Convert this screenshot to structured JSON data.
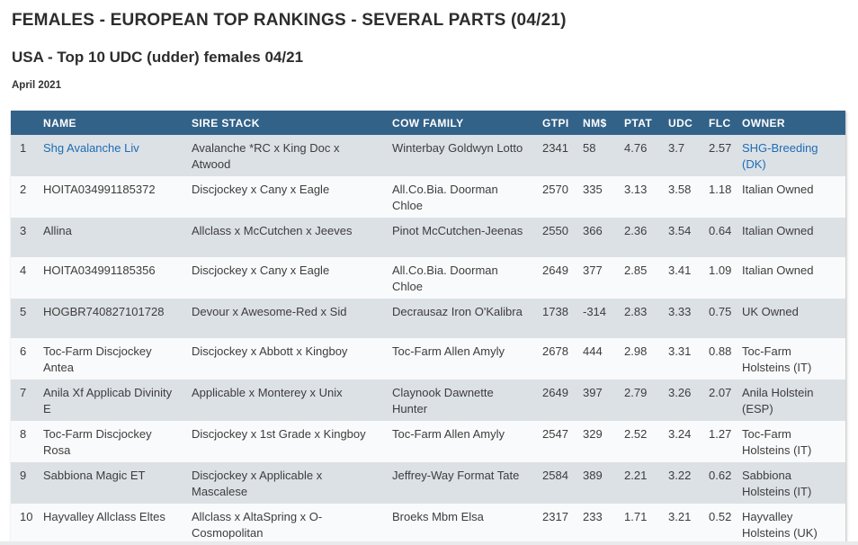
{
  "page": {
    "title": "FEMALES - EUROPEAN TOP RANKINGS - SEVERAL PARTS (04/21)",
    "subtitle": "USA - Top 10 UDC (udder) females 04/21",
    "date_label": "April 2021"
  },
  "colors": {
    "table_header_bg": "#336289",
    "row_alt_bg": "#dce1e6",
    "row_bg": "#f9fafb",
    "link": "#1e6cb3",
    "body_text": "#3d3d3d"
  },
  "table": {
    "columns": [
      "",
      "NAME",
      "SIRE STACK",
      "COW FAMILY",
      "GTPI",
      "NM$",
      "PTAT",
      "UDC",
      "FLC",
      "OWNER"
    ],
    "rows": [
      {
        "rank": "1",
        "name": "Shg Avalanche Liv",
        "name_is_link": true,
        "sire_stack": "Avalanche *RC x King Doc x Atwood",
        "cow_family": "Winterbay Goldwyn Lotto",
        "gtpi": "2341",
        "nm": "58",
        "ptat": "4.76",
        "udc": "3.7",
        "flc": "2.57",
        "owner": "SHG-Breeding (DK)",
        "owner_is_link": true
      },
      {
        "rank": "2",
        "name": "HOITA034991185372",
        "sire_stack": "Discjockey x Cany x Eagle",
        "cow_family": "All.Co.Bia. Doorman Chloe",
        "gtpi": "2570",
        "nm": "335",
        "ptat": "3.13",
        "udc": "3.58",
        "flc": "1.18",
        "owner": "Italian Owned"
      },
      {
        "rank": "3",
        "name": "Allina",
        "sire_stack": "Allclass x McCutchen x Jeeves",
        "cow_family": "Pinot McCutchen-Jeenas",
        "gtpi": "2550",
        "nm": "366",
        "ptat": "2.36",
        "udc": "3.54",
        "flc": "0.64",
        "owner": "Italian Owned"
      },
      {
        "rank": "4",
        "name": "HOITA034991185356",
        "sire_stack": "Discjockey x Cany x Eagle",
        "cow_family": "All.Co.Bia. Doorman Chloe",
        "gtpi": "2649",
        "nm": "377",
        "ptat": "2.85",
        "udc": "3.41",
        "flc": "1.09",
        "owner": "Italian Owned"
      },
      {
        "rank": "5",
        "name": "HOGBR740827101728",
        "sire_stack": "Devour x Awesome-Red x Sid",
        "cow_family": "Decrausaz Iron O'Kalibra",
        "gtpi": "1738",
        "nm": "-314",
        "ptat": "2.83",
        "udc": "3.33",
        "flc": "0.75",
        "owner": "UK Owned"
      },
      {
        "rank": "6",
        "name": "Toc-Farm Discjockey Antea",
        "sire_stack": "Discjockey x Abbott x Kingboy",
        "cow_family": "Toc-Farm Allen Amyly",
        "gtpi": "2678",
        "nm": "444",
        "ptat": "2.98",
        "udc": "3.31",
        "flc": "0.88",
        "owner": "Toc-Farm Holsteins (IT)"
      },
      {
        "rank": "7",
        "name": "Anila Xf Applicab Divinity E",
        "sire_stack": "Applicable x Monterey x Unix",
        "cow_family": "Claynook Dawnette Hunter",
        "gtpi": "2649",
        "nm": "397",
        "ptat": "2.79",
        "udc": "3.26",
        "flc": "2.07",
        "owner": "Anila Holstein (ESP)"
      },
      {
        "rank": "8",
        "name": "Toc-Farm Discjockey Rosa",
        "sire_stack": "Discjockey x 1st Grade x Kingboy",
        "cow_family": "Toc-Farm Allen Amyly",
        "gtpi": "2547",
        "nm": "329",
        "ptat": "2.52",
        "udc": "3.24",
        "flc": "1.27",
        "owner": "Toc-Farm Holsteins (IT)"
      },
      {
        "rank": "9",
        "name": "Sabbiona Magic ET",
        "sire_stack": "Discjockey x Applicable x Mascalese",
        "cow_family": "Jeffrey-Way Format Tate",
        "gtpi": "2584",
        "nm": "389",
        "ptat": "2.21",
        "udc": "3.22",
        "flc": "0.62",
        "owner": "Sabbiona Holsteins (IT)"
      },
      {
        "rank": "10",
        "name": "Hayvalley Allclass Eltes",
        "sire_stack": "Allclass x AltaSpring x O-Cosmopolitan",
        "cow_family": "Broeks Mbm Elsa",
        "gtpi": "2317",
        "nm": "233",
        "ptat": "1.71",
        "udc": "3.21",
        "flc": "0.52",
        "owner": "Hayvalley Holsteins (UK)"
      }
    ]
  }
}
